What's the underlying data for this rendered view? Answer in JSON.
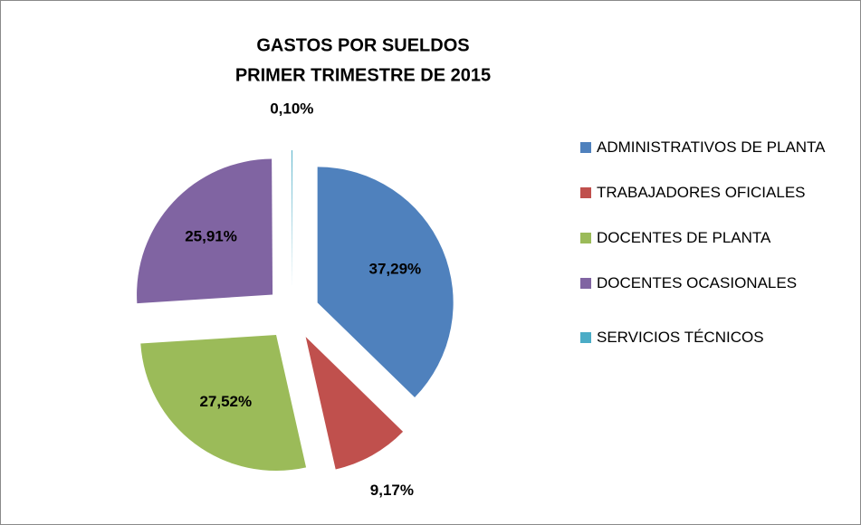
{
  "chart_data": {
    "type": "pie",
    "title": "GASTOS POR SUELDOS",
    "subtitle": "PRIMER TRIMESTRE DE 2015",
    "categories": [
      "ADMINISTRATIVOS DE PLANTA",
      "TRABAJADORES OFICIALES",
      "DOCENTES DE PLANTA",
      "DOCENTES OCASIONALES",
      "SERVICIOS TÉCNICOS"
    ],
    "values": [
      37.29,
      9.17,
      27.52,
      25.91,
      0.1
    ],
    "value_labels": [
      "37,29%",
      "9,17%",
      "27,52%",
      "25,91%",
      "0,10%"
    ],
    "colors": [
      "#4f81bd",
      "#c0504d",
      "#9bbb59",
      "#8064a2",
      "#4bacc6"
    ],
    "legend": "right"
  }
}
